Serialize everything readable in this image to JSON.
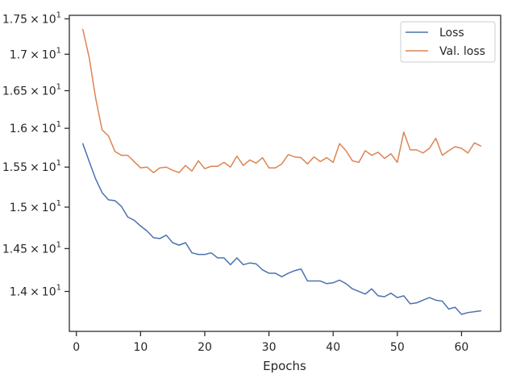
{
  "chart_data": {
    "type": "line",
    "title": "",
    "xlabel": "Epochs",
    "ylabel": "",
    "y_scale": "log",
    "xlim": [
      -1.1,
      66.1
    ],
    "ylim": [
      13.55,
      17.55
    ],
    "grid": false,
    "legend_position": "top-right",
    "x_ticks": [
      0,
      10,
      20,
      30,
      40,
      50,
      60
    ],
    "x_tick_labels": [
      "0",
      "10",
      "20",
      "30",
      "40",
      "50",
      "60"
    ],
    "y_ticks": [
      14.0,
      14.5,
      15.0,
      15.5,
      16.0,
      16.5,
      17.0,
      17.5
    ],
    "y_tick_labels": [
      {
        "mantissa": "1.4",
        "times": "×",
        "base": "10",
        "exp": "1"
      },
      {
        "mantissa": "1.45",
        "times": "×",
        "base": "10",
        "exp": "1"
      },
      {
        "mantissa": "1.5",
        "times": "×",
        "base": "10",
        "exp": "1"
      },
      {
        "mantissa": "1.55",
        "times": "×",
        "base": "10",
        "exp": "1"
      },
      {
        "mantissa": "1.6",
        "times": "×",
        "base": "10",
        "exp": "1"
      },
      {
        "mantissa": "1.65",
        "times": "×",
        "base": "10",
        "exp": "1"
      },
      {
        "mantissa": "1.7",
        "times": "×",
        "base": "10",
        "exp": "1"
      },
      {
        "mantissa": "1.75",
        "times": "×",
        "base": "10",
        "exp": "1"
      }
    ],
    "x": [
      1,
      2,
      3,
      4,
      5,
      6,
      7,
      8,
      9,
      10,
      11,
      12,
      13,
      14,
      15,
      16,
      17,
      18,
      19,
      20,
      21,
      22,
      23,
      24,
      25,
      26,
      27,
      28,
      29,
      30,
      31,
      32,
      33,
      34,
      35,
      36,
      37,
      38,
      39,
      40,
      41,
      42,
      43,
      44,
      45,
      46,
      47,
      48,
      49,
      50,
      51,
      52,
      53,
      54,
      55,
      56,
      57,
      58,
      59,
      60,
      61,
      62,
      63
    ],
    "series": [
      {
        "name": "Loss",
        "color": "#4c72b0",
        "values": [
          15.8,
          15.57,
          15.35,
          15.18,
          15.09,
          15.08,
          15.01,
          14.88,
          14.84,
          14.77,
          14.71,
          14.63,
          14.62,
          14.66,
          14.57,
          14.54,
          14.57,
          14.45,
          14.43,
          14.43,
          14.45,
          14.39,
          14.39,
          14.31,
          14.39,
          14.31,
          14.33,
          14.32,
          14.25,
          14.21,
          14.21,
          14.17,
          14.21,
          14.24,
          14.26,
          14.12,
          14.12,
          14.12,
          14.09,
          14.1,
          14.13,
          14.09,
          14.03,
          14.0,
          13.97,
          14.03,
          13.95,
          13.94,
          13.98,
          13.93,
          13.95,
          13.86,
          13.87,
          13.9,
          13.93,
          13.9,
          13.89,
          13.8,
          13.82,
          13.74,
          13.76,
          13.77,
          13.78
        ]
      },
      {
        "name": "Val. loss",
        "color": "#dd8452",
        "values": [
          17.35,
          16.95,
          16.4,
          15.98,
          15.9,
          15.7,
          15.65,
          15.65,
          15.57,
          15.49,
          15.5,
          15.43,
          15.49,
          15.5,
          15.46,
          15.43,
          15.52,
          15.45,
          15.58,
          15.48,
          15.51,
          15.51,
          15.56,
          15.5,
          15.64,
          15.52,
          15.59,
          15.55,
          15.62,
          15.49,
          15.49,
          15.54,
          15.66,
          15.63,
          15.62,
          15.54,
          15.63,
          15.57,
          15.62,
          15.56,
          15.8,
          15.71,
          15.58,
          15.56,
          15.71,
          15.65,
          15.69,
          15.61,
          15.67,
          15.56,
          15.95,
          15.72,
          15.72,
          15.68,
          15.74,
          15.87,
          15.65,
          15.71,
          15.76,
          15.74,
          15.68,
          15.81,
          15.77
        ]
      }
    ]
  }
}
